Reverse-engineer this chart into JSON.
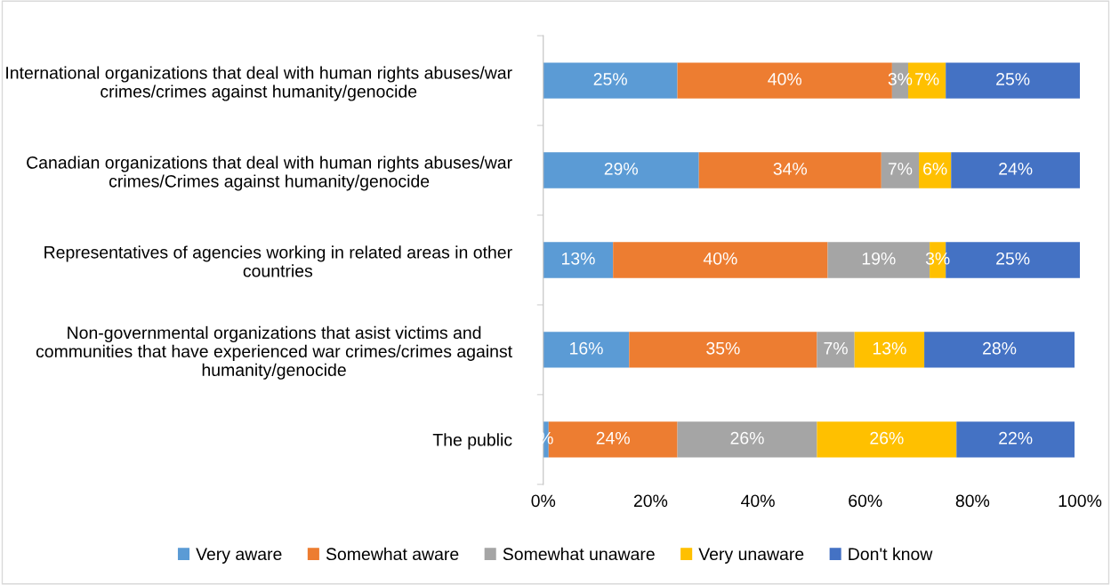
{
  "chart_data": {
    "type": "bar",
    "orientation": "horizontal",
    "stacked": true,
    "categories": [
      "International organizations that deal with human rights abuses/war crimes/crimes against humanity/genocide",
      "Canadian organizations that deal with human rights abuses/war crimes/Crimes against humanity/genocide",
      "Representatives of agencies working in related areas in other countries",
      "Non-governmental organizations that asist victims and communities that have experienced war crimes/crimes against humanity/genocide",
      "The public"
    ],
    "series": [
      {
        "name": "Very aware",
        "color": "#5b9bd5",
        "values": [
          25,
          29,
          13,
          16,
          1
        ],
        "value_labels": [
          "25%",
          "29%",
          "13%",
          "16%",
          "%"
        ]
      },
      {
        "name": "Somewhat aware",
        "color": "#ed7d31",
        "values": [
          40,
          34,
          40,
          35,
          24
        ],
        "value_labels": [
          "40%",
          "34%",
          "40%",
          "35%",
          "24%"
        ]
      },
      {
        "name": "Somewhat unaware",
        "color": "#a5a5a5",
        "values": [
          3,
          7,
          19,
          7,
          26
        ],
        "value_labels": [
          "3%",
          "7%",
          "19%",
          "7%",
          "26%"
        ]
      },
      {
        "name": "Very unaware",
        "color": "#ffc000",
        "values": [
          7,
          6,
          3,
          13,
          26
        ],
        "value_labels": [
          "7%",
          "6%",
          "3%",
          "13%",
          "26%"
        ]
      },
      {
        "name": "Don't know",
        "color": "#4472c4",
        "values": [
          25,
          24,
          25,
          28,
          22
        ],
        "value_labels": [
          "25%",
          "24%",
          "25%",
          "28%",
          "22%"
        ]
      }
    ],
    "xlim": [
      0,
      100
    ],
    "xticks": [
      {
        "value": 0,
        "label": "0%"
      },
      {
        "value": 20,
        "label": "20%"
      },
      {
        "value": 40,
        "label": "40%"
      },
      {
        "value": 60,
        "label": "60%"
      },
      {
        "value": 80,
        "label": "80%"
      },
      {
        "value": 100,
        "label": "100%"
      }
    ],
    "grid": false,
    "legend": "bottom"
  }
}
